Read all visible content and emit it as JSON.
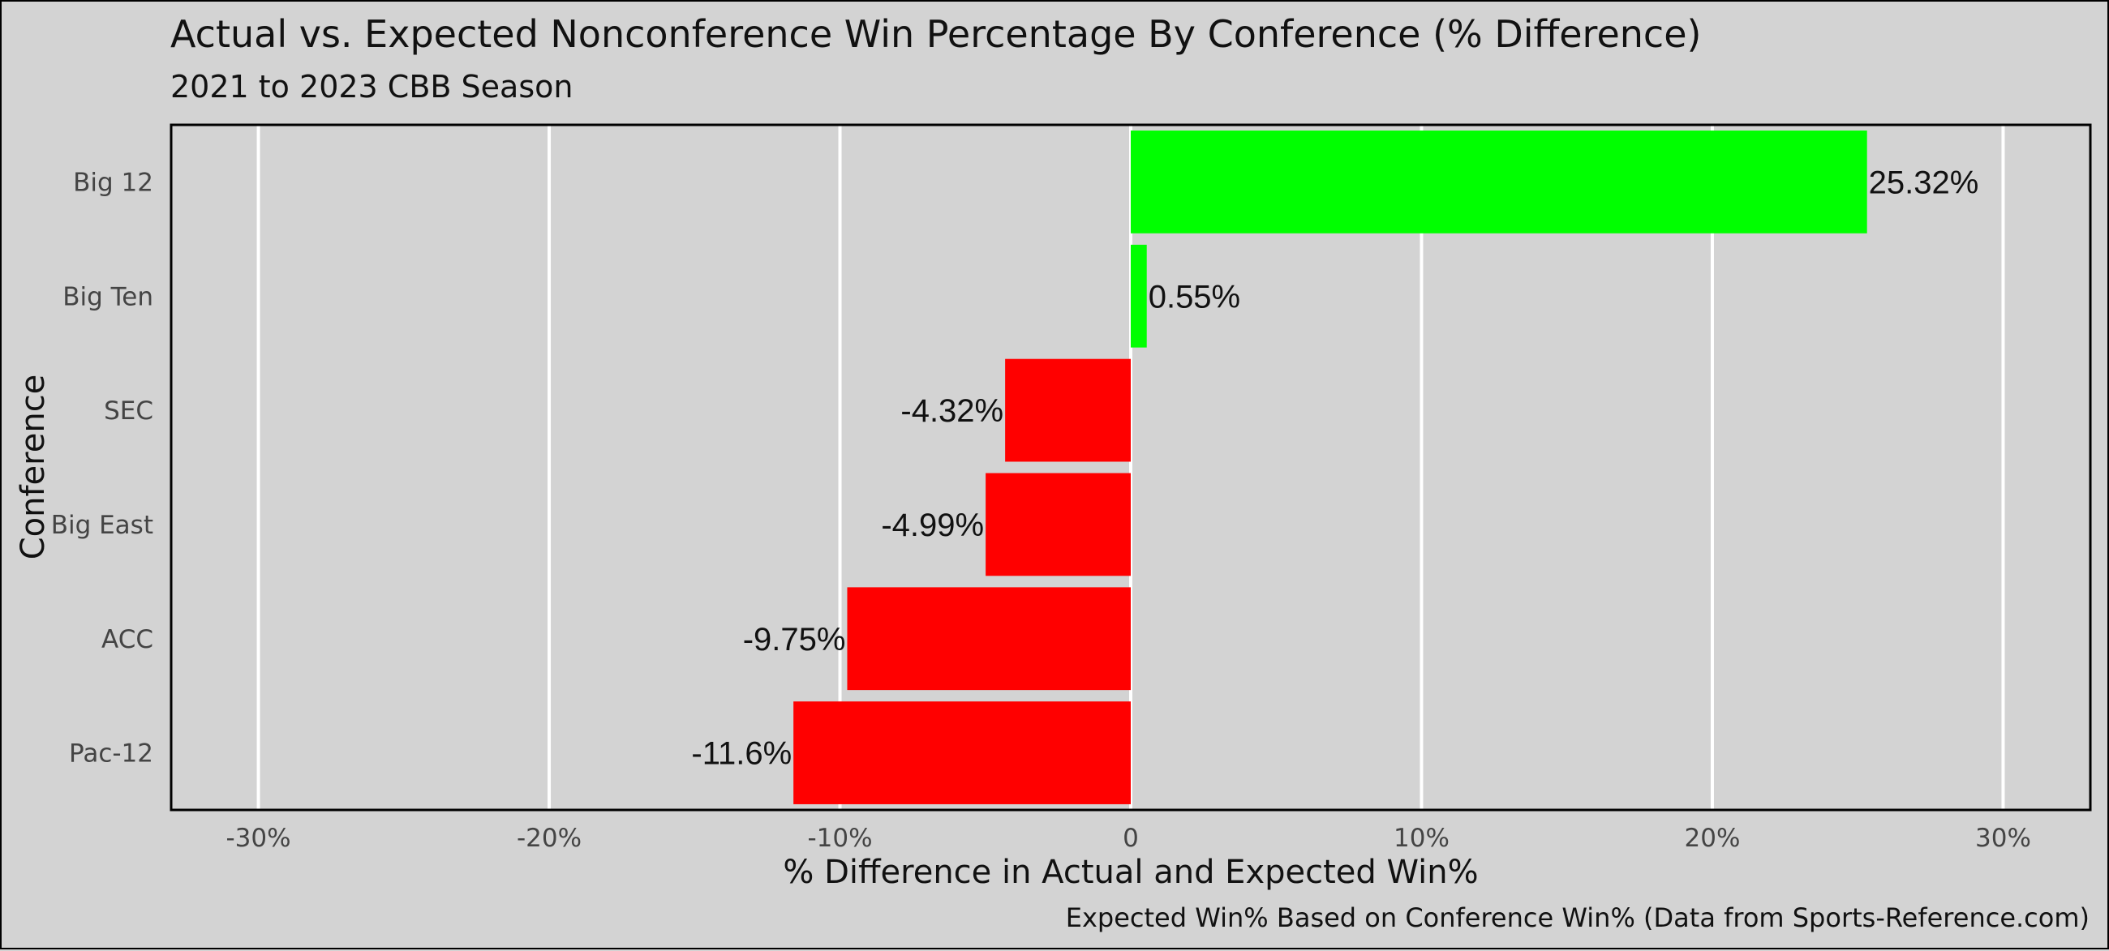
{
  "chart_data": {
    "type": "bar",
    "orientation": "horizontal",
    "title": "Actual vs. Expected Nonconference Win Percentage By Conference (% Difference)",
    "subtitle": "2021 to 2023 CBB Season",
    "xlabel": "% Difference in Actual and Expected Win%",
    "ylabel": "Conference",
    "caption": "Expected Win% Based on Conference Win% (Data from Sports-Reference.com)",
    "categories": [
      "Big 12",
      "Big Ten",
      "SEC",
      "Big East",
      "ACC",
      "Pac-12"
    ],
    "values": [
      25.32,
      0.55,
      -4.32,
      -4.99,
      -9.75,
      -11.6
    ],
    "value_labels": [
      "25.32%",
      "0.55%",
      "-4.32%",
      "-4.99%",
      "-9.75%",
      "-11.6%"
    ],
    "xlim": [
      -33,
      33
    ],
    "xticks": [
      -30,
      -20,
      -10,
      0,
      10,
      20,
      30
    ],
    "xtick_labels": [
      "-30%",
      "-20%",
      "-10%",
      "0",
      "10%",
      "20%",
      "30%"
    ],
    "grid": "vertical",
    "colors": {
      "positive": "#00ff00",
      "negative": "#ff0000",
      "background": "#d3d3d3",
      "gridline": "#ffffff"
    }
  }
}
